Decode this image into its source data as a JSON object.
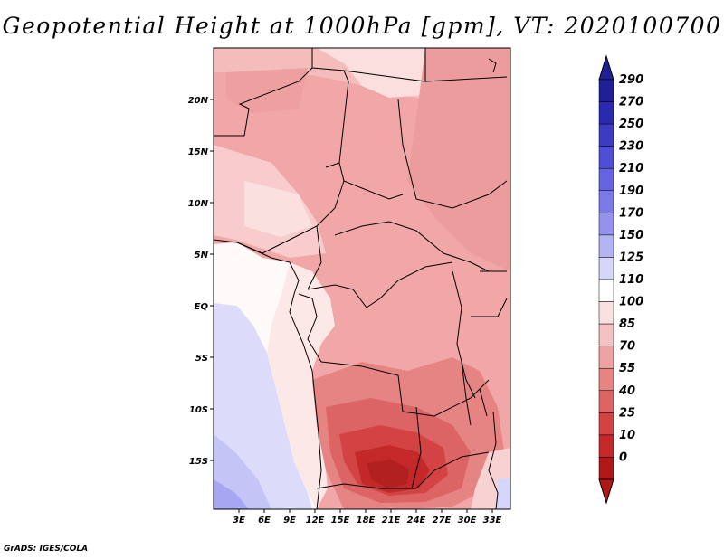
{
  "title": "Geopotential Height at 1000hPa [gpm], VT: 2020100700",
  "credit": "GrADS: IGES/COLA",
  "map": {
    "lat_labels": [
      "20N",
      "15N",
      "10N",
      "5N",
      "EQ",
      "5S",
      "10S",
      "15S"
    ],
    "lon_labels": [
      "3E",
      "6E",
      "9E",
      "12E",
      "15E",
      "18E",
      "21E",
      "24E",
      "27E",
      "30E",
      "33E"
    ]
  },
  "colorbar": {
    "levels": [
      "290",
      "270",
      "250",
      "230",
      "210",
      "190",
      "170",
      "150",
      "125",
      "110",
      "100",
      "85",
      "70",
      "55",
      "40",
      "25",
      "10",
      "0"
    ],
    "colors": [
      "#1f1f96",
      "#2a2ab0",
      "#3b3bc4",
      "#4f4fd6",
      "#6464e0",
      "#7b7be8",
      "#9393ee",
      "#b4b4f4",
      "#d6d6fa",
      "#ffffff",
      "#fbe0e0",
      "#f5c2c2",
      "#eea3a3",
      "#e68484",
      "#dd6464",
      "#d44343",
      "#c52828",
      "#b01818"
    ]
  }
}
